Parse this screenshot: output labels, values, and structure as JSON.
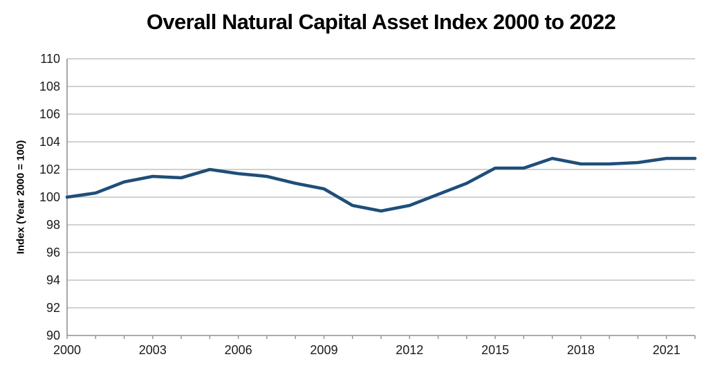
{
  "page": {
    "background": "#ffffff"
  },
  "chart_data": {
    "type": "line",
    "title": "Overall Natural Capital Asset Index 2000 to 2022",
    "xlabel": "",
    "ylabel": "Index (Year 2000 = 100)",
    "x": [
      2000,
      2001,
      2002,
      2003,
      2004,
      2005,
      2006,
      2007,
      2008,
      2009,
      2010,
      2011,
      2012,
      2013,
      2014,
      2015,
      2016,
      2017,
      2018,
      2019,
      2020,
      2021,
      2022
    ],
    "series": [
      {
        "name": "Overall Natural Capital Asset Index",
        "color": "#1f4e79",
        "values": [
          100.0,
          100.3,
          101.1,
          101.5,
          101.4,
          102.0,
          101.7,
          101.5,
          101.0,
          100.6,
          99.4,
          99.0,
          99.4,
          100.2,
          101.0,
          102.1,
          102.1,
          102.8,
          102.4,
          102.4,
          102.5,
          102.8,
          102.8
        ]
      }
    ],
    "ylim": [
      90,
      110
    ],
    "ytick_step": 2,
    "ytick_labels": [
      "90",
      "92",
      "94",
      "96",
      "98",
      "100",
      "102",
      "104",
      "106",
      "108",
      "110"
    ],
    "xtick_labels": [
      "2000",
      "2003",
      "2006",
      "2009",
      "2012",
      "2015",
      "2018",
      "2021"
    ],
    "xtick_years": [
      2000,
      2003,
      2006,
      2009,
      2012,
      2015,
      2018,
      2021
    ],
    "grid": "horizontal",
    "legend": "none",
    "colors": {
      "line": "#1f4e79",
      "grid": "#c2c2c2",
      "axis": "#8f8f8f",
      "tick_text": "#1a1a1a",
      "title_text": "#000000"
    }
  }
}
